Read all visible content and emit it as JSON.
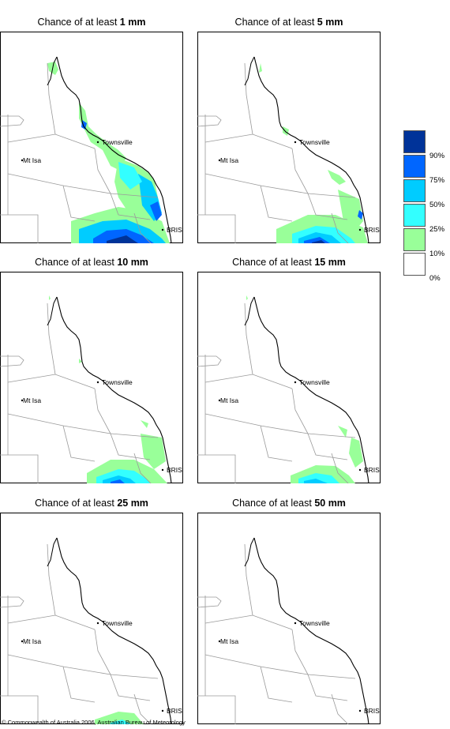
{
  "title_prefix": "Chance of at least",
  "place_labels": {
    "mt_isa": "Mt Isa",
    "townsville": "Townsville",
    "bris": "BRIS"
  },
  "panels": [
    {
      "threshold": "1 mm"
    },
    {
      "threshold": "5 mm"
    },
    {
      "threshold": "10 mm"
    },
    {
      "threshold": "15 mm"
    },
    {
      "threshold": "25 mm"
    },
    {
      "threshold": "50 mm"
    }
  ],
  "legend": {
    "labels": [
      "90%",
      "75%",
      "50%",
      "25%",
      "10%",
      "0%"
    ],
    "colors": [
      "#003399",
      "#0066ff",
      "#00ccff",
      "#33ffff",
      "#99ff99",
      "#ffffff"
    ]
  },
  "copyright": "© Commonwealth of Australia 2006, Australian Bureau of Meteorology"
}
